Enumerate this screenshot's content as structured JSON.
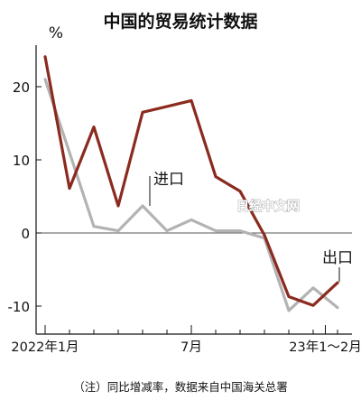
{
  "chart_data": {
    "type": "line",
    "title": "中国的贸易统计数据",
    "unit_label": "%",
    "x": [
      "2022-01",
      "2022-02",
      "2022-03",
      "2022-04",
      "2022-05",
      "2022-06",
      "2022-07",
      "2022-08",
      "2022-09",
      "2022-10",
      "2022-11",
      "2022-12",
      "2023-01~02"
    ],
    "x_tick_labels": [
      {
        "label": "2022年1月",
        "index": 0
      },
      {
        "label": "7月",
        "index": 6
      },
      {
        "label": "23年1～2月",
        "index": 11.5
      }
    ],
    "ylim": [
      -12,
      27
    ],
    "y_ticks": [
      -10,
      0,
      10,
      20
    ],
    "grid": false,
    "series": [
      {
        "name": "出口",
        "color": "#8b2a1e",
        "values": [
          24.1,
          6.1,
          14.5,
          3.7,
          16.5,
          17.3,
          18.1,
          7.7,
          5.7,
          -0.3,
          -8.7,
          -9.9,
          -6.8
        ]
      },
      {
        "name": "进口",
        "color": "#b3b3b3",
        "values": [
          21.0,
          11.0,
          0.9,
          0.3,
          3.7,
          0.3,
          1.8,
          0.3,
          0.3,
          -0.7,
          -10.6,
          -7.5,
          -10.2
        ]
      }
    ],
    "annotations": {
      "note": "（注）同比增减率，数据来自中国海关总署",
      "watermark": "日经中文网"
    }
  }
}
